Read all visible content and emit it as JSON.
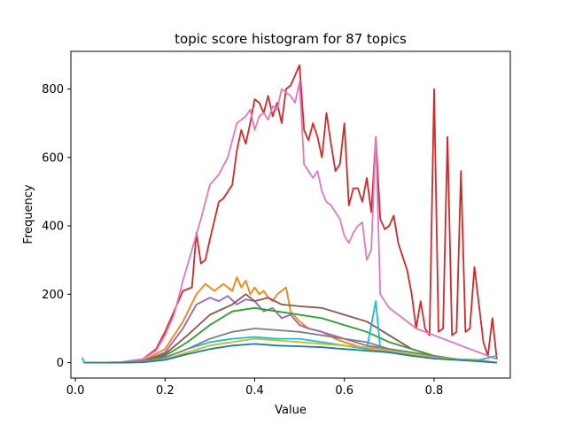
{
  "chart_data": {
    "type": "line",
    "title": "topic score histogram for 87 topics",
    "xlabel": "Value",
    "ylabel": "Frequency",
    "xlim": [
      -0.01,
      0.97
    ],
    "ylim": [
      -45,
      910
    ],
    "xticks": [
      {
        "value": 0.0,
        "label": "0.0"
      },
      {
        "value": 0.2,
        "label": "0.2"
      },
      {
        "value": 0.4,
        "label": "0.4"
      },
      {
        "value": 0.6,
        "label": "0.6"
      },
      {
        "value": 0.8,
        "label": "0.8"
      }
    ],
    "yticks": [
      {
        "value": 0,
        "label": "0"
      },
      {
        "value": 200,
        "label": "200"
      },
      {
        "value": 400,
        "label": "400"
      },
      {
        "value": 600,
        "label": "600"
      },
      {
        "value": 800,
        "label": "800"
      }
    ],
    "grid": false,
    "legend": "none",
    "topic_count": 87,
    "series": [
      {
        "color": "#d62728",
        "x": [
          0.02,
          0.05,
          0.1,
          0.15,
          0.18,
          0.2,
          0.22,
          0.24,
          0.26,
          0.27,
          0.28,
          0.29,
          0.3,
          0.32,
          0.33,
          0.35,
          0.36,
          0.37,
          0.38,
          0.39,
          0.4,
          0.41,
          0.42,
          0.43,
          0.44,
          0.45,
          0.46,
          0.47,
          0.48,
          0.49,
          0.5,
          0.51,
          0.52,
          0.53,
          0.54,
          0.55,
          0.56,
          0.57,
          0.58,
          0.59,
          0.6,
          0.61,
          0.62,
          0.63,
          0.64,
          0.65,
          0.66,
          0.67,
          0.68,
          0.69,
          0.7,
          0.71,
          0.72,
          0.73,
          0.74,
          0.75,
          0.76,
          0.77,
          0.78,
          0.79,
          0.8,
          0.81,
          0.82,
          0.83,
          0.84,
          0.85,
          0.86,
          0.87,
          0.88,
          0.89,
          0.9,
          0.91,
          0.92,
          0.93,
          0.94
        ],
        "values": [
          0,
          0,
          1,
          10,
          40,
          90,
          150,
          210,
          220,
          380,
          290,
          300,
          360,
          470,
          480,
          520,
          620,
          680,
          640,
          700,
          770,
          760,
          730,
          780,
          720,
          760,
          700,
          800,
          810,
          840,
          870,
          680,
          650,
          700,
          660,
          600,
          730,
          640,
          560,
          580,
          700,
          460,
          510,
          510,
          470,
          540,
          440,
          660,
          420,
          390,
          400,
          430,
          350,
          310,
          270,
          200,
          100,
          180,
          100,
          80,
          800,
          90,
          100,
          660,
          80,
          90,
          560,
          90,
          100,
          280,
          170,
          60,
          20,
          130,
          10
        ]
      },
      {
        "color": "#e377c2",
        "x": [
          0.02,
          0.05,
          0.1,
          0.15,
          0.18,
          0.2,
          0.22,
          0.24,
          0.26,
          0.28,
          0.3,
          0.32,
          0.34,
          0.35,
          0.36,
          0.37,
          0.38,
          0.39,
          0.4,
          0.41,
          0.42,
          0.43,
          0.44,
          0.45,
          0.46,
          0.47,
          0.48,
          0.49,
          0.5,
          0.51,
          0.52,
          0.53,
          0.54,
          0.55,
          0.56,
          0.57,
          0.58,
          0.59,
          0.6,
          0.61,
          0.62,
          0.63,
          0.64,
          0.65,
          0.66,
          0.67,
          0.68,
          0.69,
          0.7,
          0.72,
          0.74,
          0.76,
          0.78,
          0.8,
          0.82,
          0.84,
          0.86,
          0.88,
          0.9,
          0.92,
          0.94
        ],
        "values": [
          0,
          0,
          1,
          10,
          35,
          80,
          140,
          240,
          330,
          420,
          520,
          550,
          600,
          650,
          700,
          710,
          720,
          740,
          680,
          720,
          730,
          710,
          750,
          740,
          800,
          790,
          780,
          760,
          820,
          580,
          560,
          540,
          560,
          500,
          470,
          460,
          440,
          420,
          370,
          350,
          380,
          400,
          410,
          300,
          330,
          660,
          200,
          180,
          160,
          140,
          120,
          100,
          90,
          80,
          70,
          60,
          50,
          40,
          30,
          20,
          10
        ]
      },
      {
        "color": "#ff7f0e",
        "x": [
          0.02,
          0.1,
          0.15,
          0.2,
          0.24,
          0.27,
          0.29,
          0.31,
          0.33,
          0.35,
          0.36,
          0.37,
          0.38,
          0.39,
          0.4,
          0.41,
          0.42,
          0.43,
          0.44,
          0.45,
          0.46,
          0.47,
          0.48,
          0.5,
          0.52,
          0.55,
          0.58,
          0.6,
          0.65,
          0.7,
          0.75,
          0.8,
          0.85,
          0.9,
          0.94
        ],
        "values": [
          0,
          0,
          5,
          40,
          120,
          200,
          230,
          210,
          230,
          210,
          250,
          220,
          240,
          200,
          220,
          200,
          210,
          190,
          180,
          200,
          210,
          220,
          150,
          120,
          100,
          90,
          70,
          60,
          40,
          30,
          20,
          15,
          10,
          8,
          0
        ]
      },
      {
        "color": "#9467bd",
        "x": [
          0.02,
          0.1,
          0.15,
          0.2,
          0.24,
          0.27,
          0.3,
          0.32,
          0.34,
          0.36,
          0.38,
          0.4,
          0.42,
          0.44,
          0.46,
          0.48,
          0.5,
          0.52,
          0.55,
          0.6,
          0.65,
          0.7,
          0.75,
          0.8,
          0.85,
          0.9,
          0.94
        ],
        "values": [
          0,
          0,
          4,
          30,
          100,
          170,
          190,
          180,
          195,
          170,
          185,
          180,
          150,
          160,
          130,
          140,
          110,
          100,
          90,
          70,
          50,
          40,
          30,
          20,
          10,
          5,
          0
        ]
      },
      {
        "color": "#8c564b",
        "x": [
          0.02,
          0.1,
          0.15,
          0.2,
          0.25,
          0.3,
          0.35,
          0.38,
          0.4,
          0.43,
          0.46,
          0.5,
          0.55,
          0.6,
          0.65,
          0.7,
          0.75,
          0.8,
          0.85,
          0.9,
          0.94
        ],
        "values": [
          0,
          0,
          3,
          25,
          80,
          140,
          170,
          200,
          180,
          190,
          170,
          165,
          160,
          140,
          120,
          80,
          40,
          20,
          10,
          5,
          0
        ]
      },
      {
        "color": "#2ca02c",
        "x": [
          0.02,
          0.1,
          0.15,
          0.2,
          0.25,
          0.3,
          0.35,
          0.4,
          0.45,
          0.5,
          0.55,
          0.6,
          0.65,
          0.7,
          0.75,
          0.8,
          0.85,
          0.9,
          0.94
        ],
        "values": [
          0,
          0,
          3,
          20,
          60,
          110,
          150,
          160,
          150,
          140,
          130,
          110,
          90,
          60,
          40,
          20,
          10,
          5,
          0
        ]
      },
      {
        "color": "#17becf",
        "x": [
          0.015,
          0.02,
          0.05,
          0.1,
          0.15,
          0.2,
          0.25,
          0.3,
          0.35,
          0.4,
          0.45,
          0.5,
          0.55,
          0.6,
          0.65,
          0.67,
          0.68,
          0.7,
          0.75,
          0.8,
          0.85,
          0.9,
          0.94
        ],
        "values": [
          15,
          0,
          0,
          0,
          2,
          15,
          40,
          60,
          70,
          75,
          70,
          70,
          60,
          50,
          40,
          180,
          40,
          30,
          20,
          15,
          10,
          8,
          20
        ]
      },
      {
        "color": "#7f7f7f",
        "x": [
          0.02,
          0.1,
          0.15,
          0.2,
          0.25,
          0.3,
          0.35,
          0.4,
          0.45,
          0.5,
          0.55,
          0.6,
          0.65,
          0.7,
          0.75,
          0.8,
          0.85,
          0.9,
          0.94
        ],
        "values": [
          0,
          0,
          2,
          15,
          40,
          70,
          90,
          100,
          95,
          90,
          80,
          70,
          60,
          40,
          30,
          20,
          10,
          5,
          0
        ]
      },
      {
        "color": "#bcbd22",
        "x": [
          0.02,
          0.1,
          0.15,
          0.2,
          0.25,
          0.3,
          0.35,
          0.4,
          0.45,
          0.5,
          0.55,
          0.6,
          0.65,
          0.7,
          0.75,
          0.8,
          0.85,
          0.9,
          0.94
        ],
        "values": [
          0,
          0,
          2,
          10,
          30,
          50,
          60,
          70,
          65,
          60,
          55,
          50,
          45,
          35,
          25,
          15,
          10,
          5,
          0
        ]
      },
      {
        "color": "#1f77b4",
        "x": [
          0.02,
          0.1,
          0.15,
          0.2,
          0.25,
          0.3,
          0.35,
          0.4,
          0.45,
          0.5,
          0.55,
          0.6,
          0.65,
          0.7,
          0.75,
          0.8,
          0.85,
          0.9,
          0.94
        ],
        "values": [
          0,
          0,
          1,
          8,
          25,
          40,
          50,
          55,
          50,
          48,
          45,
          40,
          35,
          30,
          20,
          12,
          8,
          4,
          0
        ]
      }
    ]
  }
}
